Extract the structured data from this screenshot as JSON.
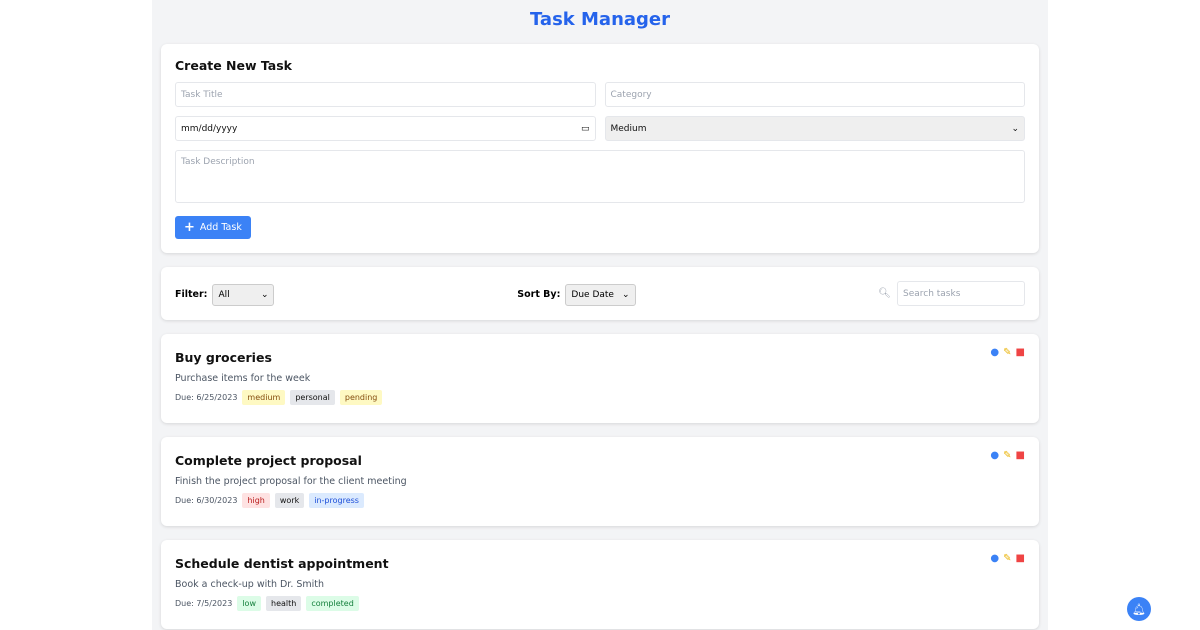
{
  "header": {
    "title": "Task Manager"
  },
  "form": {
    "title": "Create New Task",
    "title_placeholder": "Task Title",
    "category_placeholder": "Category",
    "date_placeholder": "mm/dd/yyyy",
    "priority": "Medium",
    "description_placeholder": "Task Description",
    "add_label": "Add Task"
  },
  "toolbar": {
    "filter_label": "Filter:",
    "filter_value": "All",
    "sort_label": "Sort By:",
    "sort_value": "Due Date",
    "search_placeholder": "Search tasks"
  },
  "tasks": [
    {
      "title": "Buy groceries",
      "description": "Purchase items for the week",
      "due": "Due: 6/25/2023",
      "priority": "medium",
      "category": "personal",
      "status": "pending"
    },
    {
      "title": "Complete project proposal",
      "description": "Finish the project proposal for the client meeting",
      "due": "Due: 6/30/2023",
      "priority": "high",
      "category": "work",
      "status": "in-progress"
    },
    {
      "title": "Schedule dentist appointment",
      "description": "Book a check-up with Dr. Smith",
      "due": "Due: 7/5/2023",
      "priority": "low",
      "category": "health",
      "status": "completed"
    }
  ],
  "colors": {
    "accent": "#3b82f6",
    "title": "#2563eb"
  }
}
